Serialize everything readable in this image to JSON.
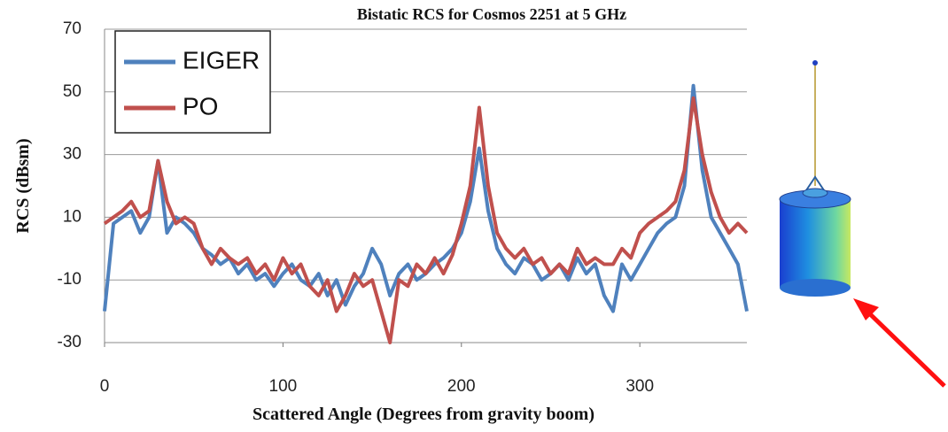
{
  "chart_data": {
    "type": "line",
    "title": "Bistatic RCS for Cosmos 2251 at 5 GHz",
    "x_label": "Scattered Angle (Degrees from gravity boom)",
    "y_label": "RCS (dBsm)",
    "x": [
      0,
      5,
      10,
      15,
      20,
      25,
      30,
      35,
      40,
      45,
      50,
      55,
      60,
      65,
      70,
      75,
      80,
      85,
      90,
      95,
      100,
      105,
      110,
      115,
      120,
      125,
      130,
      135,
      140,
      145,
      150,
      155,
      160,
      165,
      170,
      175,
      180,
      185,
      190,
      195,
      200,
      205,
      210,
      215,
      220,
      225,
      230,
      235,
      240,
      245,
      250,
      255,
      260,
      265,
      270,
      275,
      280,
      285,
      290,
      295,
      300,
      305,
      310,
      315,
      320,
      325,
      330,
      335,
      340,
      345,
      350,
      355,
      360
    ],
    "series": [
      {
        "name": "EIGER",
        "color": "#4f81bd",
        "values": [
          -20,
          8,
          10,
          12,
          5,
          10,
          28,
          5,
          10,
          8,
          5,
          0,
          -2,
          -5,
          -3,
          -8,
          -5,
          -10,
          -8,
          -12,
          -8,
          -5,
          -10,
          -12,
          -8,
          -15,
          -10,
          -18,
          -12,
          -8,
          0,
          -5,
          -15,
          -8,
          -5,
          -10,
          -8,
          -5,
          -3,
          0,
          5,
          15,
          32,
          12,
          0,
          -5,
          -8,
          -3,
          -5,
          -10,
          -8,
          -5,
          -10,
          -3,
          -8,
          -5,
          -15,
          -20,
          -5,
          -10,
          -5,
          0,
          5,
          8,
          10,
          20,
          52,
          25,
          10,
          5,
          0,
          -5,
          -20
        ]
      },
      {
        "name": "PO",
        "color": "#c0504d",
        "values": [
          8,
          10,
          12,
          15,
          10,
          12,
          28,
          15,
          8,
          10,
          8,
          0,
          -5,
          0,
          -3,
          -5,
          -3,
          -8,
          -5,
          -10,
          -3,
          -8,
          -5,
          -12,
          -15,
          -10,
          -20,
          -15,
          -8,
          -12,
          -10,
          -20,
          -30,
          -10,
          -12,
          -5,
          -8,
          -3,
          -8,
          -2,
          8,
          20,
          45,
          20,
          5,
          0,
          -3,
          0,
          -5,
          -3,
          -8,
          -5,
          -8,
          0,
          -5,
          -3,
          -5,
          -5,
          0,
          -3,
          5,
          8,
          10,
          12,
          15,
          25,
          48,
          30,
          18,
          10,
          5,
          8,
          5
        ]
      }
    ],
    "xlim": [
      0,
      360
    ],
    "ylim": [
      -30,
      70
    ],
    "xticks": [
      0,
      100,
      200,
      300
    ],
    "yticks": [
      -30,
      -10,
      10,
      30,
      50,
      70
    ],
    "grid": true
  }
}
